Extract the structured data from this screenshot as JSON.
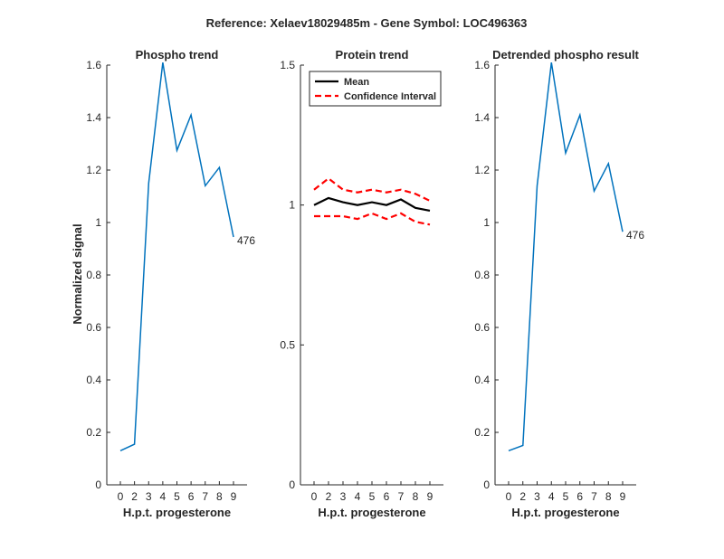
{
  "figure": {
    "title": "Reference:  Xelaev18029485m - Gene Symbol:  LOC496363",
    "ylabel": "Normalized signal"
  },
  "chart_data": [
    {
      "type": "line",
      "title": "Phospho trend",
      "xlabel": "H.p.t. progesterone",
      "ylabel": "Normalized signal",
      "categories": [
        "0",
        "2",
        "3",
        "4",
        "5",
        "6",
        "7",
        "8",
        "9"
      ],
      "ylim": [
        0,
        1.6
      ],
      "yticks": [
        "0",
        "0.2",
        "0.4",
        "0.6",
        "0.8",
        "1",
        "1.2",
        "1.4",
        "1.6"
      ],
      "series": [
        {
          "values": [
            0.13,
            0.155,
            1.15,
            1.61,
            1.275,
            1.41,
            1.14,
            1.21,
            0.945
          ],
          "color": "#0072BD",
          "style": "solid"
        }
      ],
      "annotation": "476"
    },
    {
      "type": "line",
      "title": "Protein trend",
      "xlabel": "H.p.t. progesterone",
      "categories": [
        "0",
        "2",
        "3",
        "4",
        "5",
        "6",
        "7",
        "8",
        "9"
      ],
      "ylim": [
        0,
        1.5
      ],
      "yticks": [
        "0",
        "0.5",
        "1",
        "1.5"
      ],
      "legend_position": "top-right",
      "series": [
        {
          "name": "Mean",
          "values": [
            1.0,
            1.025,
            1.01,
            1.0,
            1.01,
            1.0,
            1.02,
            0.99,
            0.98
          ],
          "color": "#000000",
          "style": "solid"
        },
        {
          "name": "Confidence Interval",
          "values": [
            1.055,
            1.095,
            1.055,
            1.045,
            1.055,
            1.045,
            1.055,
            1.04,
            1.015
          ],
          "color": "#FF0000",
          "style": "dashed"
        },
        {
          "values": [
            0.96,
            0.96,
            0.96,
            0.95,
            0.97,
            0.95,
            0.97,
            0.94,
            0.93
          ],
          "color": "#FF0000",
          "style": "dashed"
        }
      ]
    },
    {
      "type": "line",
      "title": "Detrended phospho result",
      "xlabel": "H.p.t. progesterone",
      "categories": [
        "0",
        "2",
        "3",
        "4",
        "5",
        "6",
        "7",
        "8",
        "9"
      ],
      "ylim": [
        0,
        1.6
      ],
      "yticks": [
        "0",
        "0.2",
        "0.4",
        "0.6",
        "0.8",
        "1",
        "1.2",
        "1.4",
        "1.6"
      ],
      "series": [
        {
          "values": [
            0.13,
            0.15,
            1.14,
            1.61,
            1.265,
            1.41,
            1.12,
            1.225,
            0.965
          ],
          "color": "#0072BD",
          "style": "solid"
        }
      ],
      "annotation": "476"
    }
  ]
}
